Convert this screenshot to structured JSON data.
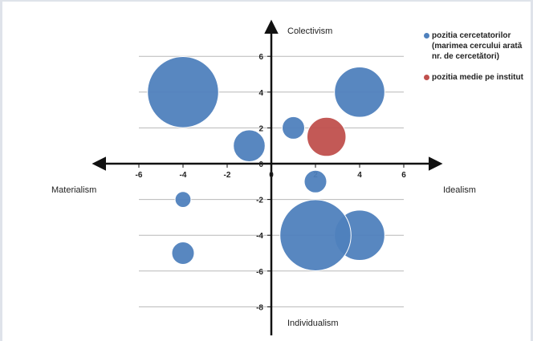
{
  "chart_data": {
    "type": "scatter",
    "subtype": "bubble",
    "xlim": [
      -6,
      6
    ],
    "ylim": [
      -8,
      6
    ],
    "x_ticks": [
      "-6",
      "-4",
      "-2",
      "0",
      "2",
      "4",
      "6"
    ],
    "y_ticks": [
      "6",
      "4",
      "2",
      "0",
      "-2",
      "-4",
      "-6",
      "-8"
    ],
    "grid": "horizontal",
    "axis_poles": {
      "top": "Colectivism",
      "bottom": "Individualism",
      "left": "Materialism",
      "right": "Idealism"
    },
    "legend_placement": "right",
    "series": [
      {
        "name": "pozitia cercetatorilor (marimea cercului arată nr. de cercetători)",
        "color": "#4f81bd",
        "points": [
          {
            "x": -4,
            "y": 4,
            "size": 10
          },
          {
            "x": 4,
            "y": 4,
            "size": 5
          },
          {
            "x": 1,
            "y": 2,
            "size": 1
          },
          {
            "x": -1,
            "y": 1,
            "size": 2
          },
          {
            "x": 2,
            "y": -1,
            "size": 1
          },
          {
            "x": -4,
            "y": -2,
            "size": 0.5
          },
          {
            "x": 4,
            "y": -4,
            "size": 5
          },
          {
            "x": 2,
            "y": -4,
            "size": 10
          },
          {
            "x": -4,
            "y": -5,
            "size": 1
          }
        ]
      },
      {
        "name": "pozitia medie pe institut",
        "color": "#c0504d",
        "points": [
          {
            "x": 2.5,
            "y": 1.5,
            "size": 3
          }
        ]
      }
    ]
  },
  "legend": {
    "items": [
      {
        "label": "pozitia cercetatorilor (marimea cercului arată nr. de cercetători)",
        "color": "#4f81bd"
      },
      {
        "label": "pozitia medie pe institut",
        "color": "#c0504d"
      }
    ]
  }
}
